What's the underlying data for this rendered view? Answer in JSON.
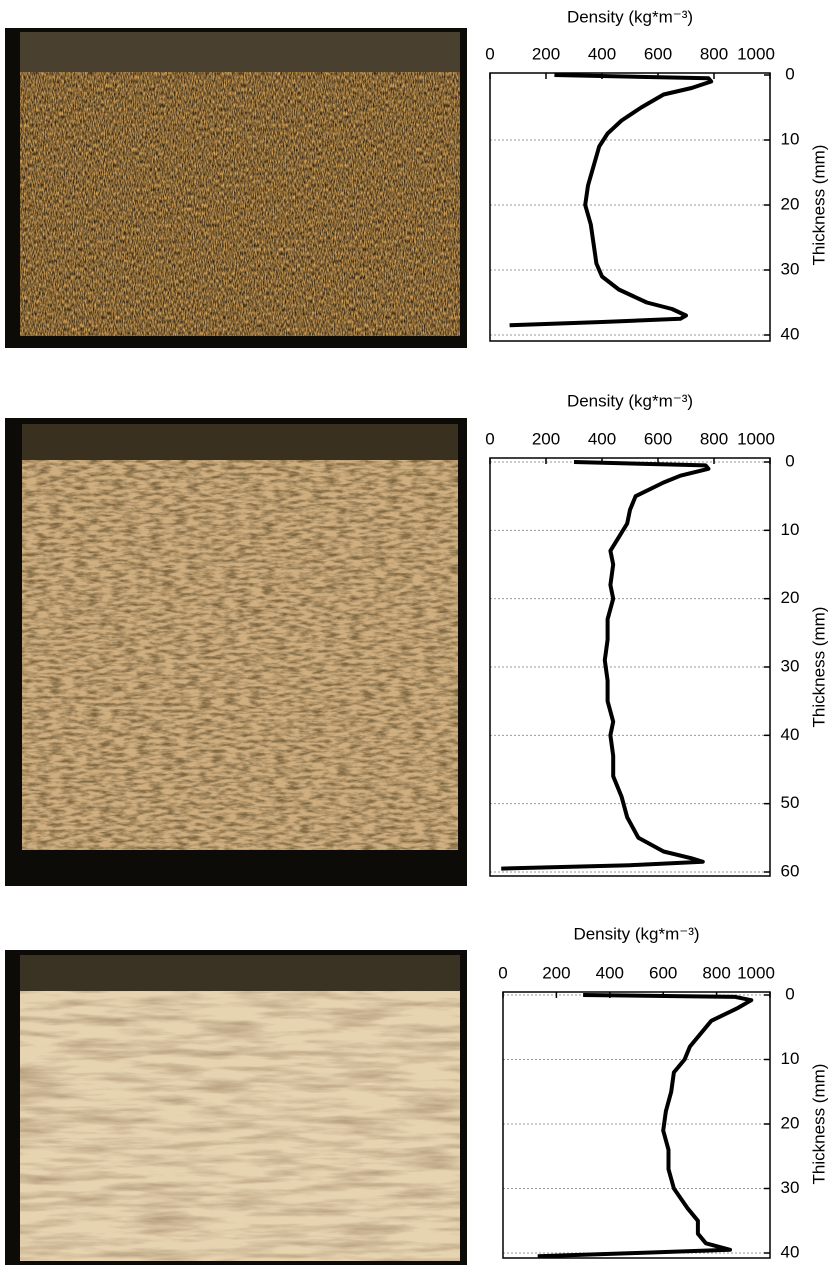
{
  "chart_data": [
    {
      "type": "line",
      "title": "Density (kg*m⁻³)",
      "ylabel": "Thickness (mm)",
      "xlim": [
        0,
        1000
      ],
      "xticks": [
        0,
        200,
        400,
        600,
        800,
        1000
      ],
      "ylim": [
        0,
        40
      ],
      "yticks": [
        0,
        10,
        20,
        30,
        40
      ],
      "y_inverted": true,
      "grid": true,
      "color": "#000000",
      "thickness": [
        0,
        0.5,
        1,
        2,
        3,
        5,
        7,
        9,
        11,
        14,
        17,
        20,
        23,
        26,
        29,
        31,
        33,
        35,
        36,
        37,
        37.5,
        38,
        38.5
      ],
      "values": [
        230,
        780,
        790,
        720,
        620,
        540,
        470,
        420,
        390,
        370,
        350,
        340,
        360,
        370,
        380,
        400,
        460,
        560,
        650,
        700,
        680,
        400,
        70
      ]
    },
    {
      "type": "line",
      "title": "Density (kg*m⁻³)",
      "ylabel": "Thickness (mm)",
      "xlim": [
        0,
        1000
      ],
      "xticks": [
        0,
        200,
        400,
        600,
        800,
        1000
      ],
      "ylim": [
        0,
        60
      ],
      "yticks": [
        0,
        10,
        20,
        30,
        40,
        50,
        60
      ],
      "y_inverted": true,
      "grid": true,
      "color": "#000000",
      "thickness": [
        0,
        0.5,
        1,
        2,
        3,
        5,
        7,
        9,
        11,
        13,
        15,
        18,
        20,
        23,
        26,
        29,
        32,
        35,
        38,
        40,
        43,
        46,
        49,
        52,
        55,
        57,
        58,
        58.5,
        59,
        59.5
      ],
      "values": [
        300,
        770,
        780,
        680,
        620,
        520,
        500,
        490,
        460,
        430,
        440,
        430,
        440,
        420,
        420,
        410,
        420,
        420,
        440,
        430,
        440,
        440,
        470,
        490,
        530,
        620,
        720,
        760,
        500,
        40
      ]
    },
    {
      "type": "line",
      "title": "Density (kg*m⁻³)",
      "ylabel": "Thickness (mm)",
      "xlim": [
        0,
        1000
      ],
      "xticks": [
        0,
        200,
        400,
        600,
        800,
        1000
      ],
      "ylim": [
        0,
        40
      ],
      "yticks": [
        0,
        10,
        20,
        30,
        40
      ],
      "y_inverted": true,
      "grid": true,
      "color": "#000000",
      "thickness": [
        0,
        0.3,
        0.8,
        2,
        4,
        6,
        8,
        10,
        12,
        15,
        18,
        21,
        24,
        27,
        30,
        33,
        35,
        37,
        38.5,
        39.5,
        40,
        40.5
      ],
      "values": [
        300,
        870,
        930,
        880,
        780,
        740,
        700,
        680,
        640,
        630,
        610,
        600,
        620,
        620,
        640,
        690,
        730,
        730,
        760,
        850,
        500,
        130
      ]
    }
  ]
}
